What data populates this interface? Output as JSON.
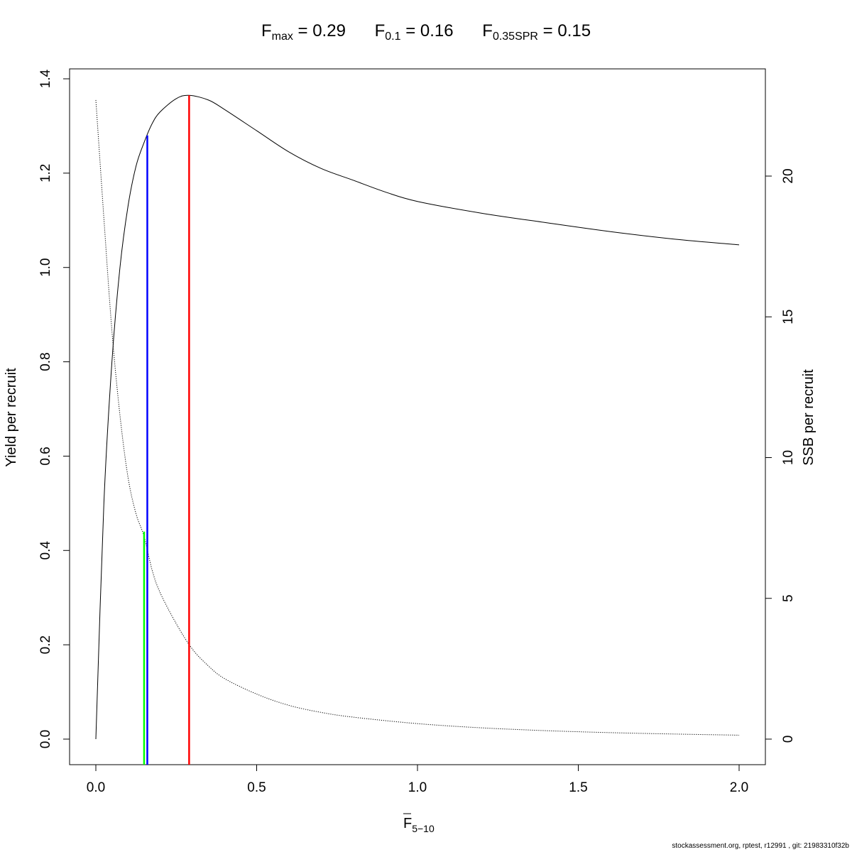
{
  "title": {
    "fmax_label": "F",
    "fmax_sub": "max",
    "fmax_value": "= 0.29",
    "f01_label": "F",
    "f01_sub": "0.1",
    "f01_value": "= 0.16",
    "fspr_label": "F",
    "fspr_sub": "0.35SPR",
    "fspr_value": "= 0.15"
  },
  "footer": "stockassessment.org, rptest, r12991 , git: 21983310f32b",
  "chart_data": {
    "type": "line",
    "xlabel": "F",
    "xlabel_sub": "5−10",
    "ylabel": "Yield per recruit",
    "y2label": "SSB per recruit",
    "xlim": [
      0,
      2
    ],
    "ylim": [
      0,
      1.4
    ],
    "y2lim": [
      0,
      23
    ],
    "x_ticks": [
      "0.0",
      "0.5",
      "1.0",
      "1.5",
      "2.0"
    ],
    "y_ticks": [
      "0.0",
      "0.2",
      "0.4",
      "0.6",
      "0.8",
      "1.0",
      "1.2",
      "1.4"
    ],
    "y2_ticks": [
      "0",
      "5",
      "10",
      "15",
      "20"
    ],
    "grid": false,
    "series": [
      {
        "axis": "left",
        "style": "solid",
        "color": "#000000",
        "x": [
          0,
          0.025,
          0.05,
          0.075,
          0.1,
          0.125,
          0.15,
          0.175,
          0.2,
          0.25,
          0.29,
          0.35,
          0.4,
          0.5,
          0.6,
          0.7,
          0.8,
          0.9,
          1.0,
          1.2,
          1.4,
          1.6,
          1.8,
          2.0
        ],
        "y": [
          0,
          0.5,
          0.8,
          1.0,
          1.13,
          1.215,
          1.265,
          1.305,
          1.33,
          1.358,
          1.365,
          1.355,
          1.335,
          1.29,
          1.245,
          1.21,
          1.185,
          1.16,
          1.14,
          1.115,
          1.095,
          1.076,
          1.06,
          1.048
        ]
      },
      {
        "axis": "right",
        "style": "dotted",
        "color": "#000000",
        "x": [
          0,
          0.025,
          0.05,
          0.075,
          0.1,
          0.125,
          0.15,
          0.175,
          0.2,
          0.25,
          0.3,
          0.35,
          0.4,
          0.5,
          0.6,
          0.7,
          0.8,
          1.0,
          1.2,
          1.4,
          1.6,
          1.8,
          2.0
        ],
        "y": [
          22.7,
          18.5,
          14.5,
          11.5,
          9.3,
          8.0,
          7.2,
          6.0,
          5.2,
          4.1,
          3.2,
          2.6,
          2.15,
          1.6,
          1.2,
          0.95,
          0.78,
          0.55,
          0.4,
          0.3,
          0.23,
          0.18,
          0.14
        ]
      }
    ],
    "reference_lines": [
      {
        "x": 0.29,
        "y": 1.365,
        "color": "#ff0000"
      },
      {
        "x": 0.16,
        "y": 1.28,
        "color": "#0000ff"
      },
      {
        "x": 0.15,
        "y": 0.44,
        "color": "#00ff00"
      }
    ]
  }
}
